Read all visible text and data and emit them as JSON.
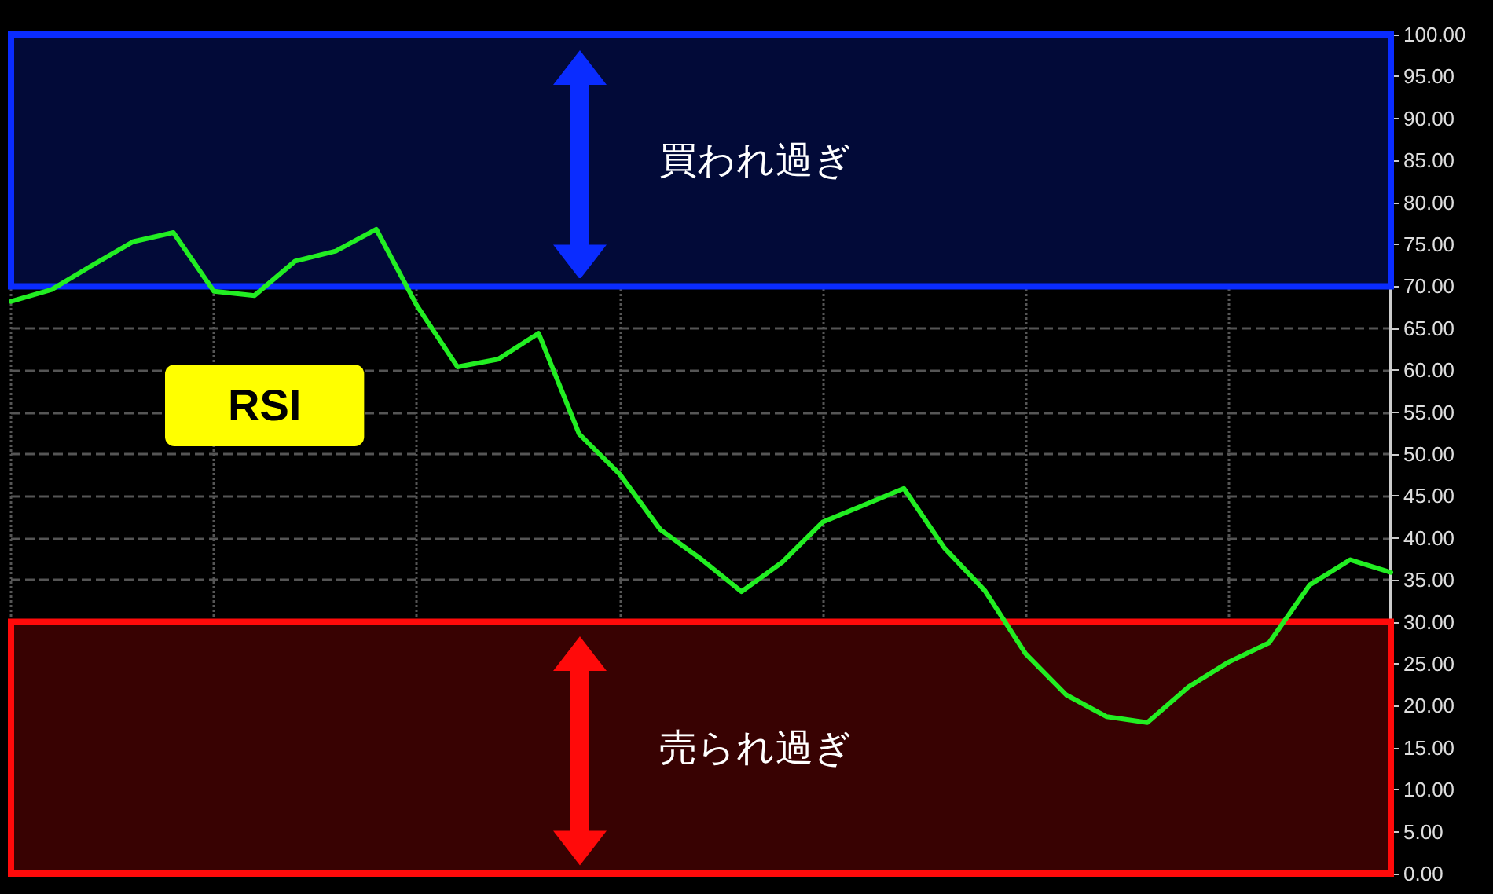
{
  "chart_data": {
    "type": "line",
    "categories": [
      null,
      null,
      null,
      null,
      null,
      null,
      null,
      null,
      null,
      null,
      null,
      null,
      null,
      null,
      null,
      null,
      null,
      null,
      null,
      null,
      null,
      null,
      null,
      null,
      null,
      null,
      null,
      null,
      null,
      null,
      null,
      null,
      null,
      null,
      null
    ],
    "values": [
      68.2,
      69.6,
      72.5,
      75.3,
      76.4,
      69.4,
      68.9,
      73.0,
      74.2,
      76.8,
      67.7,
      60.4,
      61.3,
      64.4,
      52.4,
      47.6,
      41.0,
      37.5,
      33.6,
      37.1,
      41.9,
      43.9,
      45.9,
      38.8,
      33.7,
      26.2,
      21.3,
      18.7,
      18.0,
      22.2,
      25.2,
      27.5,
      34.4,
      37.4,
      35.9
    ],
    "color": "#22ee22",
    "ylim": [
      0,
      100
    ],
    "yticks": [
      {
        "value": 0,
        "label": "0.00"
      },
      {
        "value": 5,
        "label": "5.00"
      },
      {
        "value": 10,
        "label": "10.00"
      },
      {
        "value": 15,
        "label": "15.00"
      },
      {
        "value": 20,
        "label": "20.00"
      },
      {
        "value": 25,
        "label": "25.00"
      },
      {
        "value": 30,
        "label": "30.00"
      },
      {
        "value": 35,
        "label": "35.00"
      },
      {
        "value": 40,
        "label": "40.00"
      },
      {
        "value": 45,
        "label": "45.00"
      },
      {
        "value": 50,
        "label": "50.00"
      },
      {
        "value": 55,
        "label": "55.00"
      },
      {
        "value": 60,
        "label": "60.00"
      },
      {
        "value": 65,
        "label": "65.00"
      },
      {
        "value": 70,
        "label": "70.00"
      },
      {
        "value": 75,
        "label": "75.00"
      },
      {
        "value": 80,
        "label": "80.00"
      },
      {
        "value": 85,
        "label": "85.00"
      },
      {
        "value": 90,
        "label": "90.00"
      },
      {
        "value": 95,
        "label": "95.00"
      },
      {
        "value": 100,
        "label": "100.00"
      }
    ],
    "grid": true,
    "marker": "none",
    "line_style": "solid",
    "bands": [
      {
        "axis": "y",
        "from": 70,
        "to": 100,
        "label": "買われ過ぎ",
        "color": "#0a2cff"
      },
      {
        "axis": "y",
        "from": 0,
        "to": 30,
        "label": "売られ過ぎ",
        "color": "#ff0a0a"
      }
    ],
    "annotations": [
      "RSI"
    ]
  }
}
